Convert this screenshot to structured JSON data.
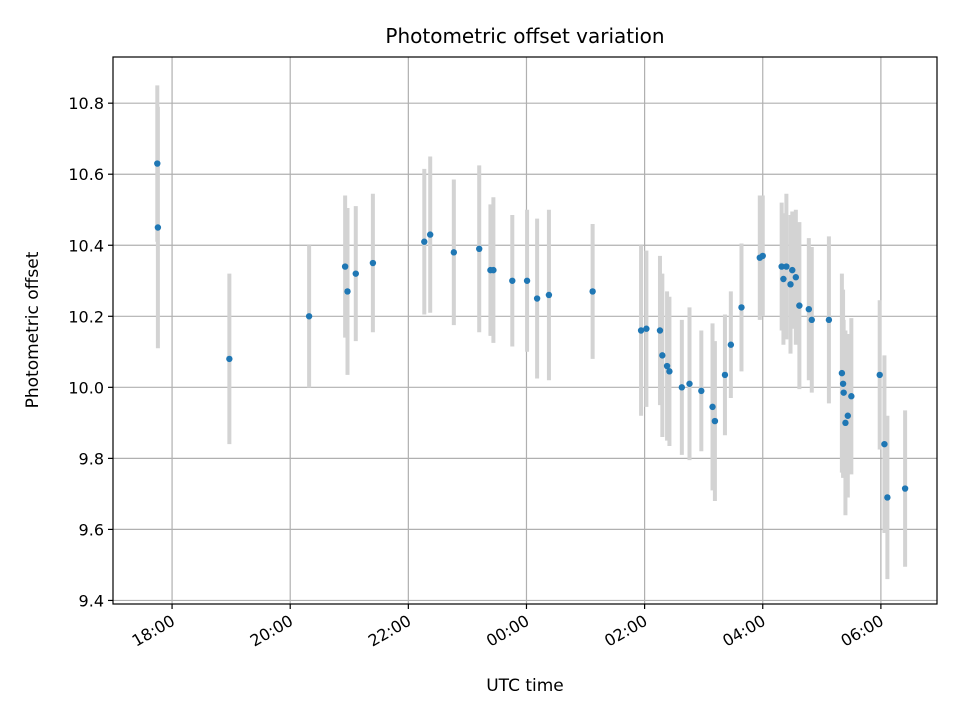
{
  "chart_data": {
    "type": "scatter",
    "title": "Photometric offset variation",
    "xlabel": "UTC time",
    "ylabel": "Photometric offset",
    "x_unit": "hours since 00:00 UTC",
    "xlim": [
      -7.0,
      6.95
    ],
    "ylim": [
      9.39,
      10.93
    ],
    "x_ticks": [
      {
        "value": -6,
        "label": "18:00"
      },
      {
        "value": -4,
        "label": "20:00"
      },
      {
        "value": -2,
        "label": "22:00"
      },
      {
        "value": 0,
        "label": "00:00"
      },
      {
        "value": 2,
        "label": "02:00"
      },
      {
        "value": 4,
        "label": "04:00"
      },
      {
        "value": 6,
        "label": "06:00"
      }
    ],
    "y_ticks": [
      {
        "value": 9.4,
        "label": "9.4"
      },
      {
        "value": 9.6,
        "label": "9.6"
      },
      {
        "value": 9.8,
        "label": "9.8"
      },
      {
        "value": 10.0,
        "label": "10.0"
      },
      {
        "value": 10.2,
        "label": "10.2"
      },
      {
        "value": 10.4,
        "label": "10.4"
      },
      {
        "value": 10.6,
        "label": "10.6"
      },
      {
        "value": 10.8,
        "label": "10.8"
      }
    ],
    "grid": true,
    "marker_color": "#1f77b4",
    "errorbar_color": "#d3d3d3",
    "points": [
      {
        "x": -6.25,
        "y": 10.63,
        "err": 0.22
      },
      {
        "x": -6.24,
        "y": 10.45,
        "err": 0.34
      },
      {
        "x": -5.03,
        "y": 10.08,
        "err": 0.24
      },
      {
        "x": -3.68,
        "y": 10.2,
        "err": 0.2
      },
      {
        "x": -3.07,
        "y": 10.34,
        "err": 0.2
      },
      {
        "x": -3.03,
        "y": 10.27,
        "err": 0.235
      },
      {
        "x": -2.89,
        "y": 10.32,
        "err": 0.19
      },
      {
        "x": -2.6,
        "y": 10.35,
        "err": 0.195
      },
      {
        "x": -1.73,
        "y": 10.41,
        "err": 0.205
      },
      {
        "x": -1.63,
        "y": 10.43,
        "err": 0.22
      },
      {
        "x": -1.23,
        "y": 10.38,
        "err": 0.205
      },
      {
        "x": -0.8,
        "y": 10.39,
        "err": 0.235
      },
      {
        "x": -0.61,
        "y": 10.33,
        "err": 0.185
      },
      {
        "x": -0.56,
        "y": 10.33,
        "err": 0.205
      },
      {
        "x": -0.24,
        "y": 10.3,
        "err": 0.185
      },
      {
        "x": 0.01,
        "y": 10.3,
        "err": 0.2
      },
      {
        "x": 0.18,
        "y": 10.25,
        "err": 0.225
      },
      {
        "x": 0.38,
        "y": 10.26,
        "err": 0.24
      },
      {
        "x": 1.12,
        "y": 10.27,
        "err": 0.19
      },
      {
        "x": 1.94,
        "y": 10.16,
        "err": 0.24
      },
      {
        "x": 2.03,
        "y": 10.165,
        "err": 0.22
      },
      {
        "x": 2.26,
        "y": 10.16,
        "err": 0.21
      },
      {
        "x": 2.3,
        "y": 10.09,
        "err": 0.23
      },
      {
        "x": 2.38,
        "y": 10.06,
        "err": 0.21
      },
      {
        "x": 2.42,
        "y": 10.045,
        "err": 0.21
      },
      {
        "x": 2.63,
        "y": 10.0,
        "err": 0.19
      },
      {
        "x": 2.76,
        "y": 10.01,
        "err": 0.215
      },
      {
        "x": 2.96,
        "y": 9.99,
        "err": 0.17
      },
      {
        "x": 3.15,
        "y": 9.945,
        "err": 0.235
      },
      {
        "x": 3.19,
        "y": 9.905,
        "err": 0.225
      },
      {
        "x": 3.36,
        "y": 10.035,
        "err": 0.17
      },
      {
        "x": 3.46,
        "y": 10.12,
        "err": 0.15
      },
      {
        "x": 3.64,
        "y": 10.225,
        "err": 0.18
      },
      {
        "x": 3.95,
        "y": 10.365,
        "err": 0.175
      },
      {
        "x": 4.0,
        "y": 10.37,
        "err": 0.17
      },
      {
        "x": 4.32,
        "y": 10.34,
        "err": 0.18
      },
      {
        "x": 4.35,
        "y": 10.305,
        "err": 0.185
      },
      {
        "x": 4.4,
        "y": 10.34,
        "err": 0.205
      },
      {
        "x": 4.47,
        "y": 10.29,
        "err": 0.195
      },
      {
        "x": 4.5,
        "y": 10.33,
        "err": 0.165
      },
      {
        "x": 4.56,
        "y": 10.31,
        "err": 0.19
      },
      {
        "x": 4.62,
        "y": 10.23,
        "err": 0.235
      },
      {
        "x": 4.78,
        "y": 10.22,
        "err": 0.2
      },
      {
        "x": 4.83,
        "y": 10.19,
        "err": 0.205
      },
      {
        "x": 5.12,
        "y": 10.19,
        "err": 0.235
      },
      {
        "x": 5.34,
        "y": 10.04,
        "err": 0.28
      },
      {
        "x": 5.36,
        "y": 10.01,
        "err": 0.265
      },
      {
        "x": 5.37,
        "y": 9.985,
        "err": 0.205
      },
      {
        "x": 5.4,
        "y": 9.9,
        "err": 0.26
      },
      {
        "x": 5.44,
        "y": 9.92,
        "err": 0.23
      },
      {
        "x": 5.5,
        "y": 9.975,
        "err": 0.22
      },
      {
        "x": 5.98,
        "y": 10.035,
        "err": 0.21
      },
      {
        "x": 6.06,
        "y": 9.84,
        "err": 0.25
      },
      {
        "x": 6.11,
        "y": 9.69,
        "err": 0.23
      },
      {
        "x": 6.41,
        "y": 9.715,
        "err": 0.22
      }
    ]
  }
}
